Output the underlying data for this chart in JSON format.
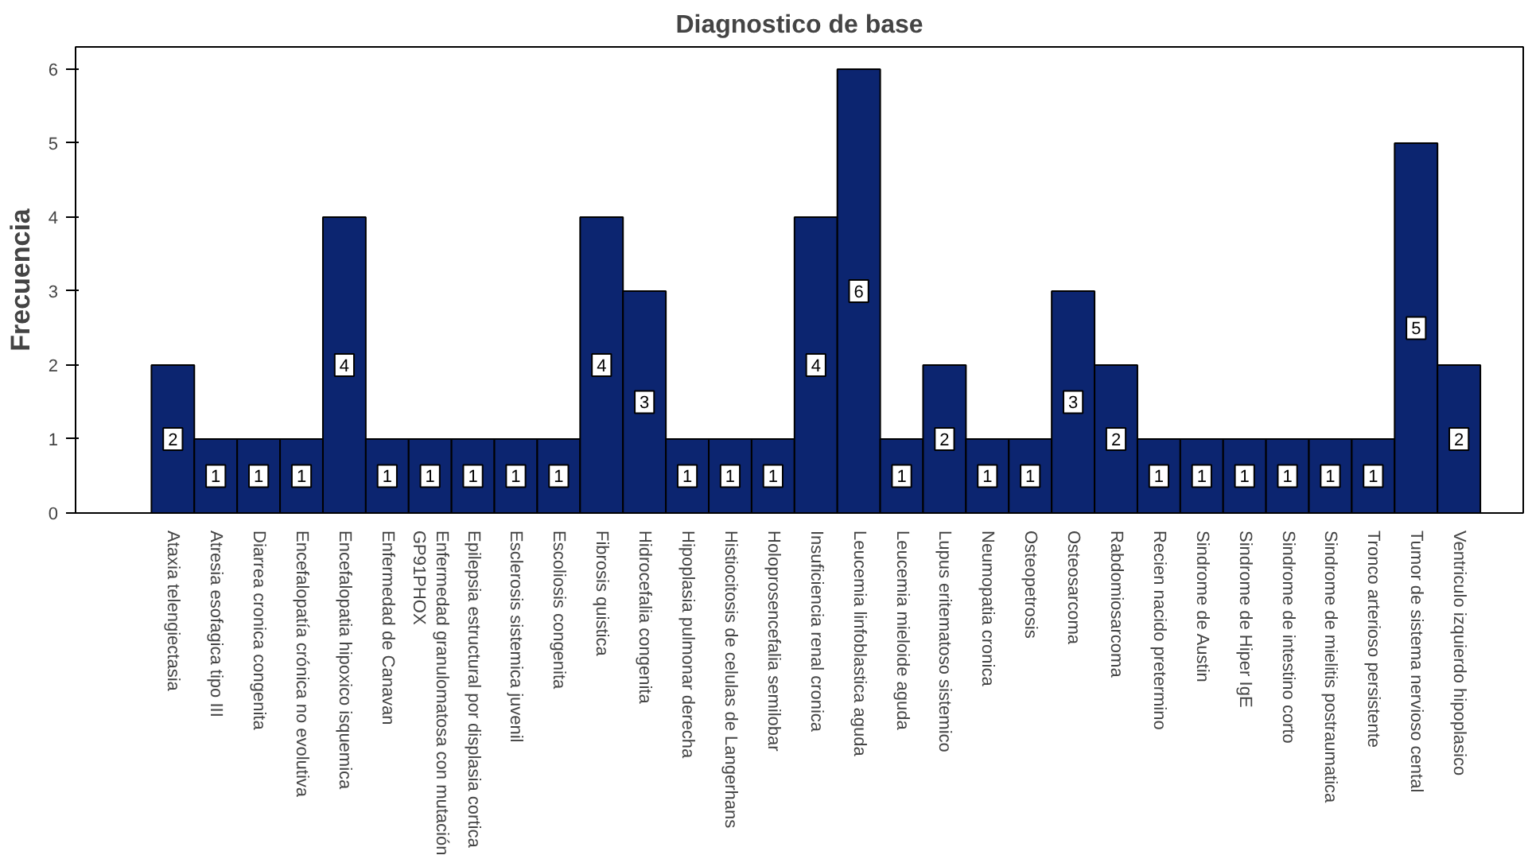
{
  "chart_data": {
    "type": "bar",
    "title": "Diagnostico de base",
    "ylabel": "Frecuencia",
    "categories": [
      "Ataxia telengiectasia",
      "Atresia esofagica tipo III",
      "Diarrea cronica congenita",
      "Encefalopatía crónica no evolutiva",
      "Encefalopatia hipoxico isquemica",
      "Enfermedad de Canavan",
      "Enfermedad granulomatosa con mutación\nGP91PHOX",
      "Epilepsia estructural por displasia cortica",
      "Esclerosis sistemica juvenil",
      "Escoliosis congenita",
      "Fibrosis quistica",
      "Hidrocefalia congenita",
      "Hipoplasia pulmonar derecha",
      "Histiocitosis de celulas de Langerhans",
      "Holoprosencefalia semilobar",
      "Insuficiencia renal cronica",
      "Leucemia linfoblastica aguda",
      "Leucemia mieloide aguda",
      "Lupus eritematoso sistemico",
      "Neumopatia cronica",
      "Osteopetrosis",
      "Osteosarcoma",
      "Rabdomiosarcoma",
      "Recien nacido pretermino",
      "Sindrome de Austin",
      "Sindrome de Hiper IgE",
      "Sindrome de intestino corto",
      "Sindrome de mielitis postraumatica",
      "Tronco arterioso persistente",
      "Tumor de sistema nervioso cental",
      "Ventriculo izquierdo hipoplasico"
    ],
    "values": [
      2,
      1,
      1,
      1,
      4,
      1,
      1,
      1,
      1,
      1,
      4,
      3,
      1,
      1,
      1,
      4,
      6,
      1,
      2,
      1,
      1,
      3,
      2,
      1,
      1,
      1,
      1,
      1,
      1,
      5,
      2
    ],
    "color": "#0c2570",
    "ylim": [
      0,
      6.3
    ],
    "yticks": [
      0,
      1,
      2,
      3,
      4,
      5,
      6
    ],
    "data_labels": true,
    "grid": false
  }
}
